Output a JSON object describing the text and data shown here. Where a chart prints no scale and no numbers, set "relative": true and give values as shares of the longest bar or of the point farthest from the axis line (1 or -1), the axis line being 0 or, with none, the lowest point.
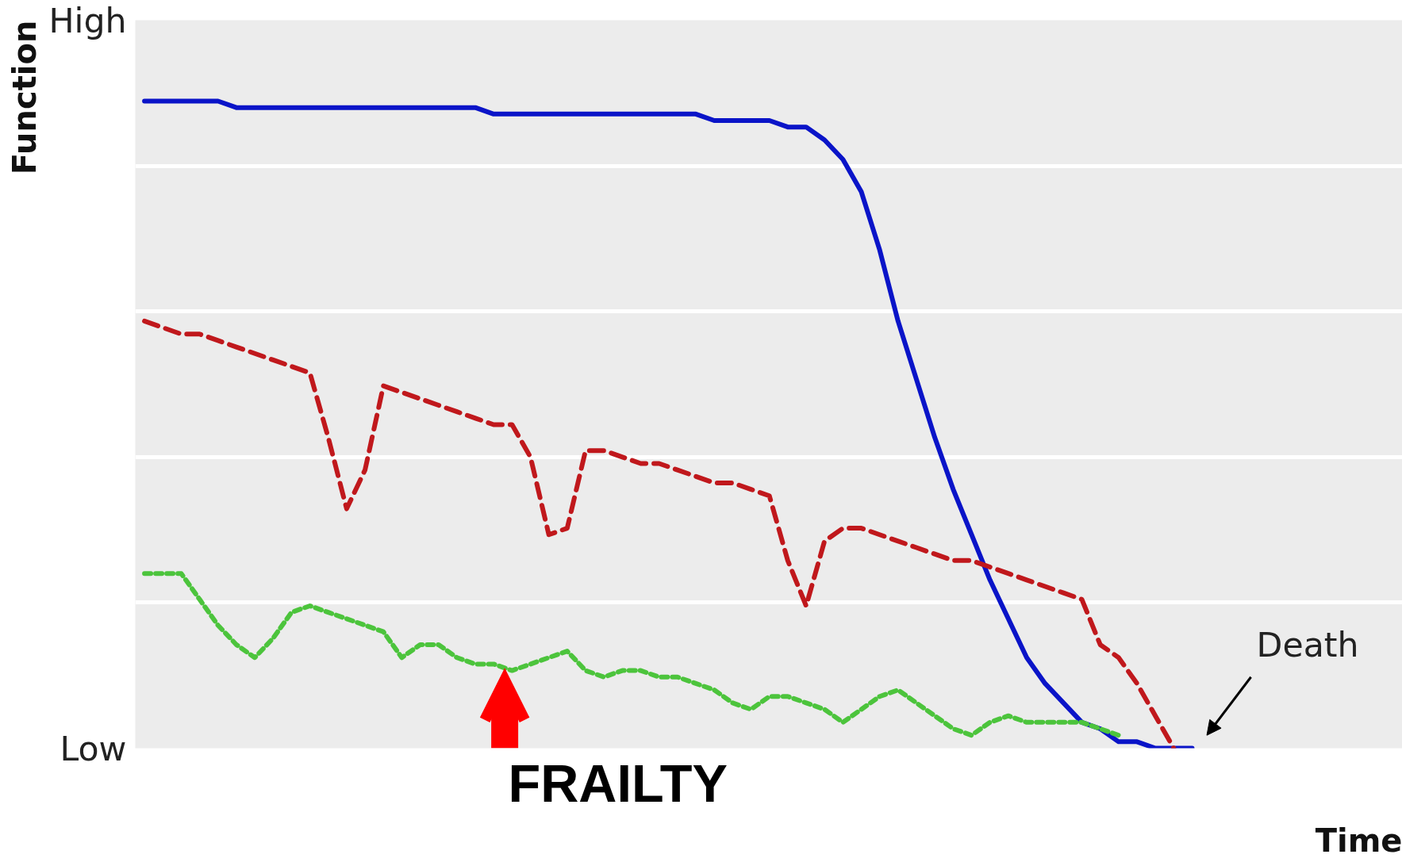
{
  "chart_data": {
    "type": "line",
    "relative": true,
    "ylabel": "Function",
    "xlabel": "Time",
    "categories": [
      null,
      null,
      null,
      null,
      null,
      null,
      null,
      null,
      null,
      null,
      null,
      null,
      null,
      null,
      null,
      null,
      null,
      null,
      null,
      null,
      null,
      null,
      null,
      null,
      null,
      null,
      null,
      null,
      null,
      null,
      null,
      null,
      null,
      null,
      null,
      null,
      null,
      null,
      null,
      null,
      null,
      null,
      null,
      null,
      null,
      null,
      null,
      null,
      null,
      null,
      null,
      null,
      null,
      null,
      null,
      null,
      null,
      null
    ],
    "grid": "y",
    "tick_labels": "y",
    "series": [
      {
        "color": "#0a14c8",
        "line_style": "solid",
        "values": [
          1.0,
          1.0,
          1.0,
          1.0,
          1.0,
          0.99,
          0.99,
          0.99,
          0.99,
          0.99,
          0.99,
          0.99,
          0.99,
          0.99,
          0.99,
          0.99,
          0.99,
          0.99,
          0.99,
          0.98,
          0.98,
          0.98,
          0.98,
          0.98,
          0.98,
          0.98,
          0.98,
          0.98,
          0.98,
          0.98,
          0.98,
          0.97,
          0.97,
          0.97,
          0.97,
          0.96,
          0.96,
          0.94,
          0.91,
          0.86,
          0.77,
          0.66,
          0.57,
          0.48,
          0.4,
          0.33,
          0.26,
          0.2,
          0.14,
          0.1,
          0.07,
          0.04,
          0.03,
          0.01,
          0.01,
          0.0,
          0.0,
          0.0
        ]
      },
      {
        "color": "#c0181c",
        "line_style": "dashed",
        "values": [
          0.66,
          0.65,
          0.64,
          0.64,
          0.63,
          0.62,
          0.61,
          0.6,
          0.59,
          0.58,
          0.48,
          0.37,
          0.43,
          0.56,
          0.55,
          0.54,
          0.53,
          0.52,
          0.51,
          0.5,
          0.5,
          0.45,
          0.33,
          0.34,
          0.46,
          0.46,
          0.45,
          0.44,
          0.44,
          0.43,
          0.42,
          0.41,
          0.41,
          0.4,
          0.39,
          0.29,
          0.22,
          0.32,
          0.34,
          0.34,
          0.33,
          0.32,
          0.31,
          0.3,
          0.29,
          0.29,
          0.28,
          0.27,
          0.26,
          0.25,
          0.24,
          0.23,
          0.16,
          0.14,
          0.1,
          0.05,
          0.0,
          null
        ]
      },
      {
        "color": "#4cc43c",
        "line_style": "dotted",
        "values": [
          0.27,
          0.27,
          0.27,
          0.23,
          0.19,
          0.16,
          0.14,
          0.17,
          0.21,
          0.22,
          0.21,
          0.2,
          0.19,
          0.18,
          0.14,
          0.16,
          0.16,
          0.14,
          0.13,
          0.13,
          0.12,
          0.13,
          0.14,
          0.15,
          0.12,
          0.11,
          0.12,
          0.12,
          0.11,
          0.11,
          0.1,
          0.09,
          0.07,
          0.06,
          0.08,
          0.08,
          0.07,
          0.06,
          0.04,
          0.06,
          0.08,
          0.09,
          0.07,
          0.05,
          0.03,
          0.02,
          0.04,
          0.05,
          0.04,
          0.04,
          0.04,
          0.04,
          0.03,
          0.02,
          null,
          null,
          null,
          null
        ]
      }
    ],
    "annotations": [
      "High",
      "Low",
      "FRAILTY",
      "Death"
    ]
  }
}
